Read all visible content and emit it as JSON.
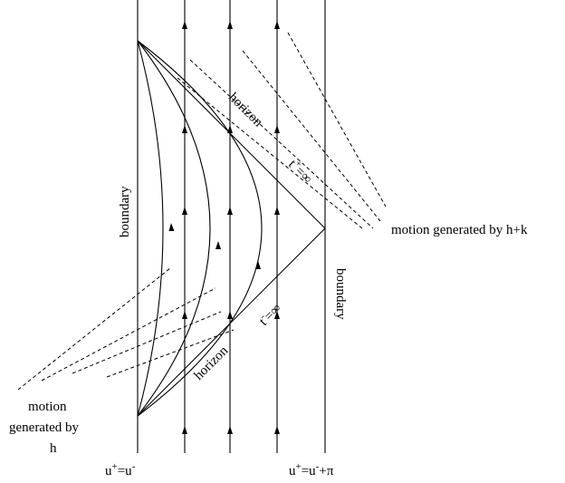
{
  "labels": {
    "boundary_left": "boundary",
    "boundary_right": "boundary",
    "horizon_top": "horizon",
    "horizon_bottom": "horizon",
    "t_plus": "t",
    "t_plus_sup": "+",
    "t_plus_eq": "=∞",
    "t_minus": "t",
    "t_minus_sup": "-",
    "t_minus_eq": "=∞",
    "motion_hk": "motion generated by h+k",
    "motion_h_line1": "motion",
    "motion_h_line2": "generated by",
    "motion_h_line3": "h",
    "bottom_left_u1": "u",
    "bottom_left_sup1": "+",
    "bottom_left_eq": "=u",
    "bottom_left_sup2": "-",
    "bottom_right_u1": "u",
    "bottom_right_sup1": "+",
    "bottom_right_eq": "=u",
    "bottom_right_sup2": "-",
    "bottom_right_tail": "+π"
  }
}
